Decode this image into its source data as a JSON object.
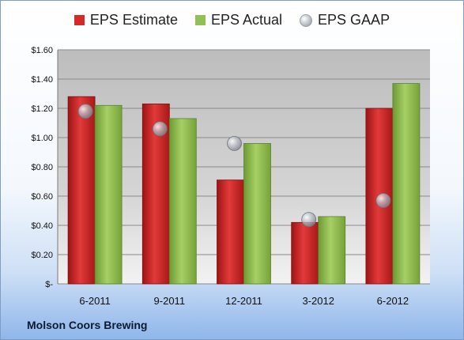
{
  "chart_data": {
    "type": "bar",
    "categories": [
      "6-2011",
      "9-2011",
      "12-2011",
      "3-2012",
      "6-2012"
    ],
    "series": [
      {
        "name": "EPS Estimate",
        "kind": "bar",
        "color": "#d42a2a",
        "values": [
          1.28,
          1.23,
          0.71,
          0.42,
          1.2
        ]
      },
      {
        "name": "EPS Actual",
        "kind": "bar",
        "color": "#92c052",
        "values": [
          1.22,
          1.13,
          0.96,
          0.46,
          1.37
        ]
      },
      {
        "name": "EPS GAAP",
        "kind": "marker",
        "color": "#b8bec6",
        "values": [
          1.18,
          1.06,
          0.96,
          0.44,
          0.57
        ]
      }
    ],
    "y_ticks": [
      "$-",
      "$0.20",
      "$0.40",
      "$0.60",
      "$0.80",
      "$1.00",
      "$1.20",
      "$1.40",
      "$1.60"
    ],
    "ylim": [
      0,
      1.6
    ],
    "grid": true,
    "legend": "top-center"
  },
  "footer": {
    "company": "Molson Coors Brewing"
  }
}
